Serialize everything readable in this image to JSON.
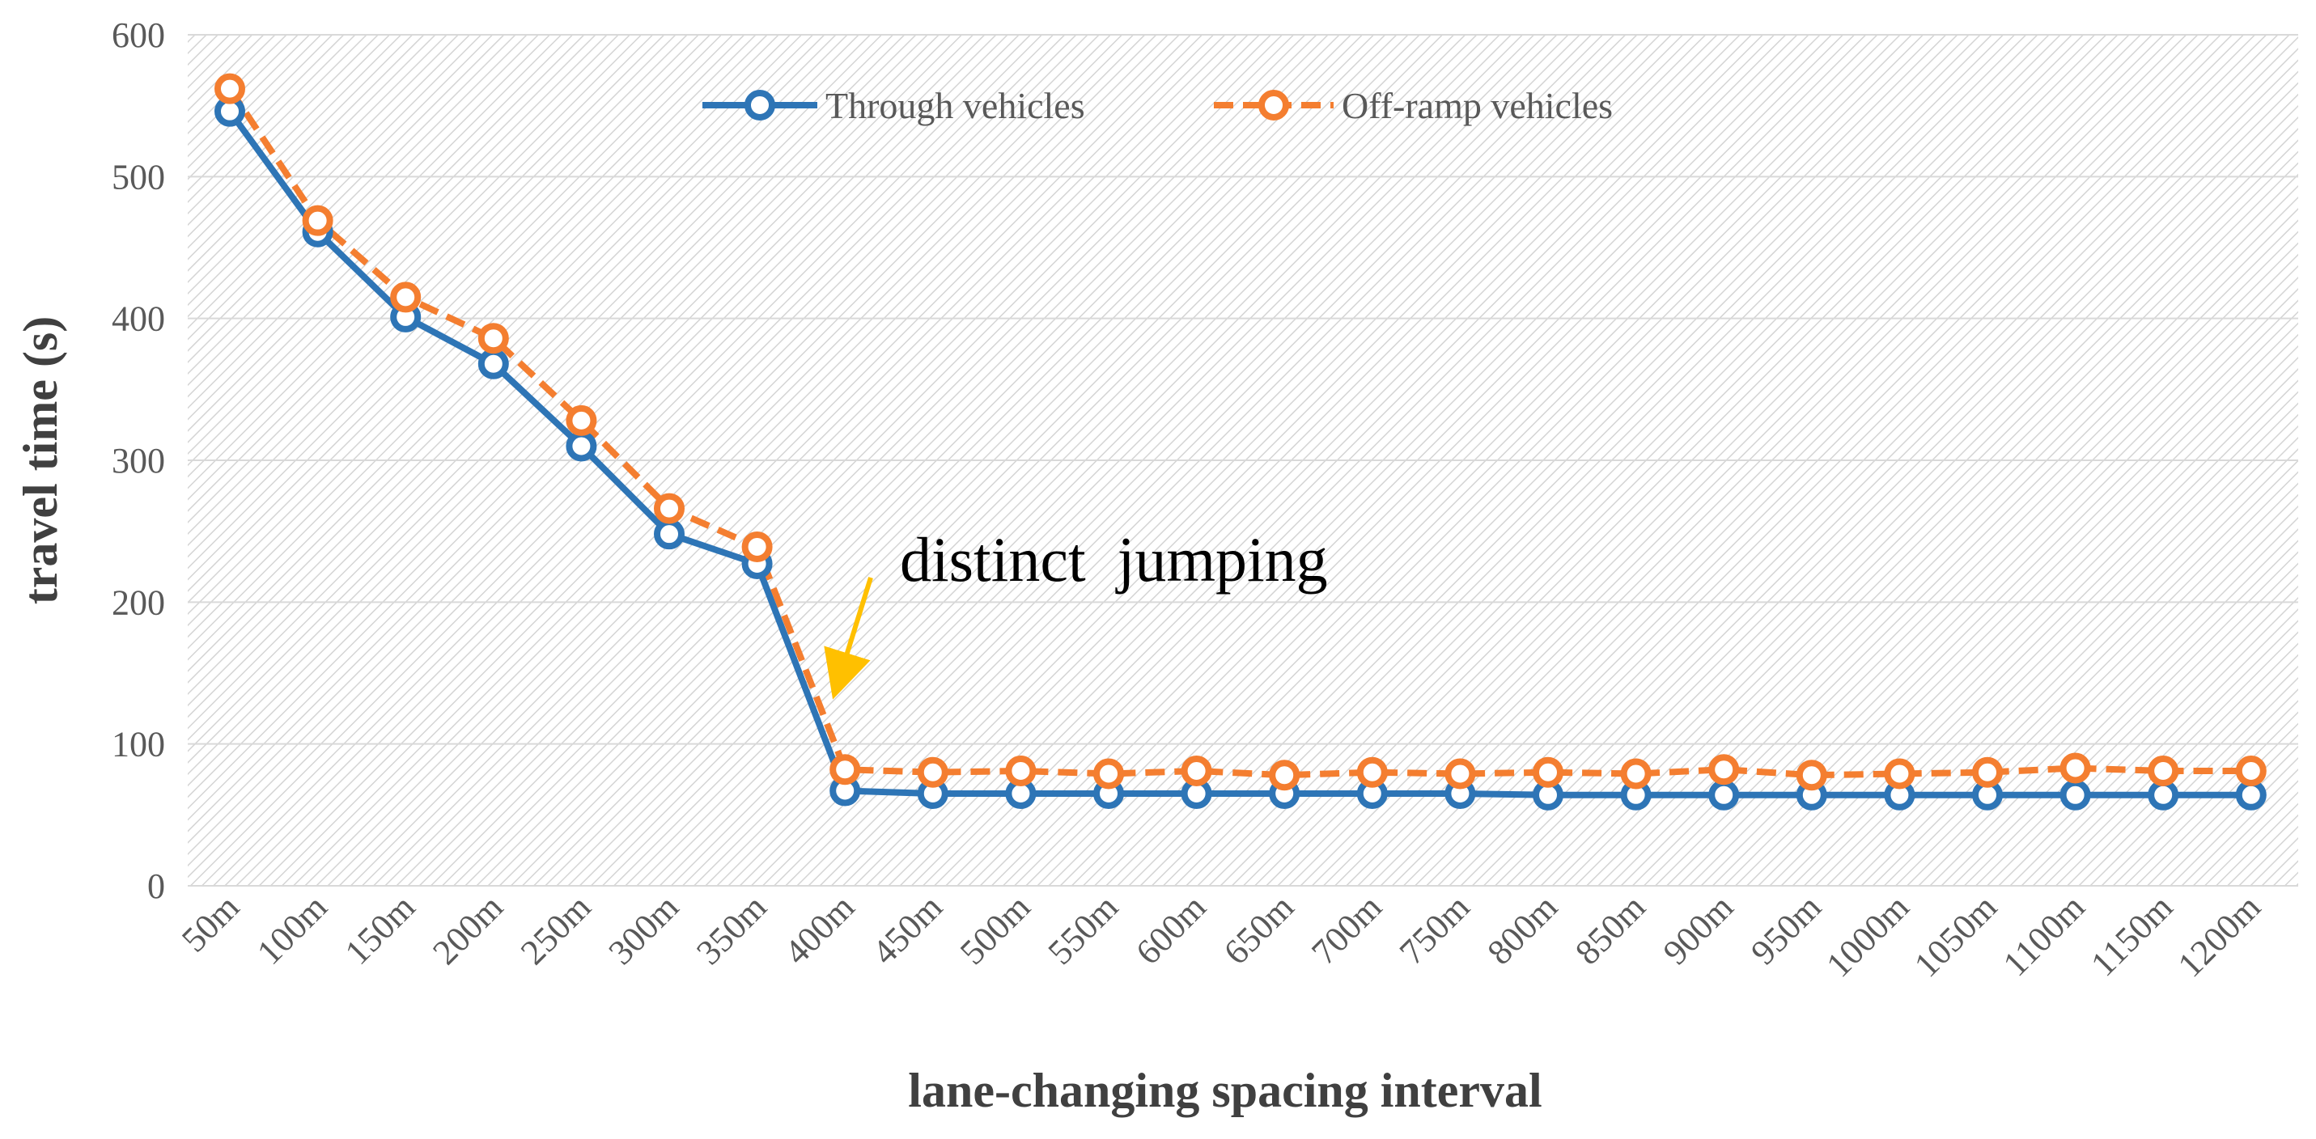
{
  "chart_data": {
    "type": "line",
    "title": "",
    "xlabel": "lane-changing spacing interval",
    "ylabel": "travel time (s)",
    "ylim": [
      0,
      600
    ],
    "yticks": [
      0,
      100,
      200,
      300,
      400,
      500,
      600
    ],
    "categories": [
      "50m",
      "100m",
      "150m",
      "200m",
      "250m",
      "300m",
      "350m",
      "400m",
      "450m",
      "500m",
      "550m",
      "600m",
      "650m",
      "700m",
      "750m",
      "800m",
      "850m",
      "900m",
      "950m",
      "1000m",
      "1050m",
      "1100m",
      "1150m",
      "1200m"
    ],
    "series": [
      {
        "name": "Through vehicles",
        "color": "#2E75B6",
        "line_style": "solid",
        "values": [
          546,
          461,
          401,
          368,
          310,
          248,
          227,
          67,
          65,
          65,
          65,
          65,
          65,
          65,
          65,
          64,
          64,
          64,
          64,
          64,
          64,
          64,
          64,
          64
        ]
      },
      {
        "name": "Off-ramp vehicles",
        "color": "#F47E30",
        "line_style": "dashed",
        "values": [
          562,
          469,
          415,
          386,
          328,
          266,
          239,
          82,
          80,
          81,
          79,
          81,
          78,
          80,
          79,
          80,
          79,
          82,
          78,
          79,
          80,
          83,
          81,
          81
        ]
      }
    ],
    "legend_position": "top-center",
    "annotation": {
      "text": "distinct  jumping",
      "target_category": "400m",
      "arrow_color": "#FFC000"
    }
  }
}
